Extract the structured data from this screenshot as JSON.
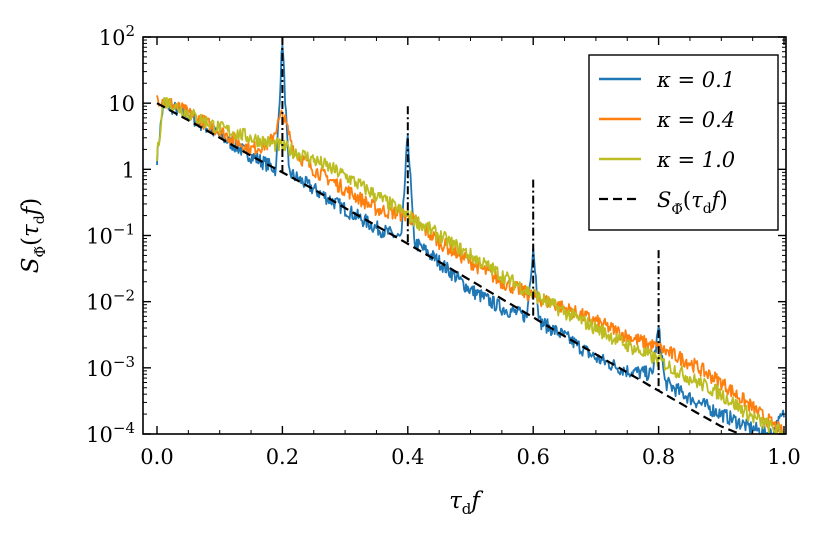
{
  "chart_data": {
    "type": "line",
    "xlabel": "τ_d f",
    "ylabel": "S_Φ̃(τ_d f)",
    "xlim": [
      0.0,
      1.0
    ],
    "ylim": [
      0.0001,
      100
    ],
    "yscale": "log",
    "x_ticks": [
      0.0,
      0.2,
      0.4,
      0.6,
      0.8,
      1.0
    ],
    "x_tick_labels": [
      "0.0",
      "0.2",
      "0.4",
      "0.6",
      "0.8",
      "1.0"
    ],
    "y_ticks": [
      0.0001,
      0.001,
      0.01,
      0.1,
      1,
      10,
      100
    ],
    "y_tick_labels": [
      {
        "base": "10",
        "exp": "−4"
      },
      {
        "base": "10",
        "exp": "−3"
      },
      {
        "base": "10",
        "exp": "−2"
      },
      {
        "base": "10",
        "exp": "−1"
      },
      {
        "base": "1",
        "exp": ""
      },
      {
        "base": "10",
        "exp": ""
      },
      {
        "base": "10",
        "exp": "2"
      }
    ],
    "grid": false,
    "legend_position": "top-right",
    "series": [
      {
        "name": "κ = 0.1",
        "color": "#1f77b4",
        "style": "solid",
        "x": [
          0.0,
          0.01,
          0.02,
          0.05,
          0.1,
          0.15,
          0.19,
          0.2,
          0.21,
          0.25,
          0.3,
          0.35,
          0.39,
          0.4,
          0.41,
          0.45,
          0.5,
          0.55,
          0.59,
          0.6,
          0.61,
          0.65,
          0.7,
          0.75,
          0.79,
          0.8,
          0.81,
          0.85,
          0.9,
          0.95,
          0.98,
          1.0
        ],
        "y": [
          1.5,
          10,
          9,
          6.5,
          3.2,
          1.6,
          1.0,
          90,
          0.9,
          0.5,
          0.25,
          0.13,
          0.09,
          3.5,
          0.08,
          0.04,
          0.015,
          0.008,
          0.006,
          0.07,
          0.005,
          0.003,
          0.0014,
          0.0009,
          0.0008,
          0.004,
          0.0006,
          0.00035,
          0.0002,
          0.00012,
          0.0001,
          0.0002
        ]
      },
      {
        "name": "κ = 0.4",
        "color": "#ff7f0e",
        "style": "solid",
        "x": [
          0.0,
          0.01,
          0.02,
          0.05,
          0.1,
          0.15,
          0.18,
          0.2,
          0.22,
          0.25,
          0.3,
          0.35,
          0.4,
          0.45,
          0.5,
          0.55,
          0.6,
          0.65,
          0.7,
          0.75,
          0.8,
          0.85,
          0.9,
          0.95,
          1.0
        ],
        "y": [
          12,
          11,
          10,
          7,
          3.8,
          2.0,
          2.5,
          7,
          1.8,
          1.0,
          0.5,
          0.25,
          0.2,
          0.08,
          0.04,
          0.02,
          0.012,
          0.008,
          0.005,
          0.003,
          0.002,
          0.0012,
          0.0006,
          0.00025,
          0.0001
        ]
      },
      {
        "name": "κ = 1.0",
        "color": "#bcbd22",
        "style": "solid",
        "x": [
          0.0,
          0.01,
          0.02,
          0.05,
          0.1,
          0.15,
          0.2,
          0.25,
          0.3,
          0.35,
          0.4,
          0.45,
          0.5,
          0.55,
          0.6,
          0.65,
          0.7,
          0.75,
          0.8,
          0.85,
          0.9,
          0.95,
          1.0
        ],
        "y": [
          1.5,
          11,
          10,
          7,
          4.2,
          3.0,
          2.2,
          1.4,
          0.8,
          0.4,
          0.2,
          0.1,
          0.05,
          0.025,
          0.013,
          0.007,
          0.004,
          0.0022,
          0.0013,
          0.0007,
          0.0004,
          0.00018,
          0.0001
        ]
      },
      {
        "name": "S_Φ̃(τ_d f)",
        "color": "#000000",
        "style": "dashed",
        "x": [
          0.0,
          0.05,
          0.1,
          0.15,
          0.2,
          0.25,
          0.3,
          0.35,
          0.4,
          0.45,
          0.5,
          0.55,
          0.6,
          0.65,
          0.7,
          0.75,
          0.8,
          0.85,
          0.9,
          0.93
        ],
        "y": [
          10,
          5.5,
          3.0,
          1.6,
          0.9,
          0.5,
          0.26,
          0.14,
          0.075,
          0.04,
          0.021,
          0.011,
          0.0058,
          0.003,
          0.0016,
          0.00085,
          0.00045,
          0.00024,
          0.00013,
          0.0001
        ]
      }
    ],
    "spikes": [
      {
        "x": 0.2,
        "y_top": 100,
        "y_bottom": 0.9
      },
      {
        "x": 0.4,
        "y_top": 9,
        "y_bottom": 0.075
      },
      {
        "x": 0.6,
        "y_top": 0.7,
        "y_bottom": 0.0058
      },
      {
        "x": 0.8,
        "y_top": 0.06,
        "y_bottom": 0.00045
      }
    ]
  }
}
